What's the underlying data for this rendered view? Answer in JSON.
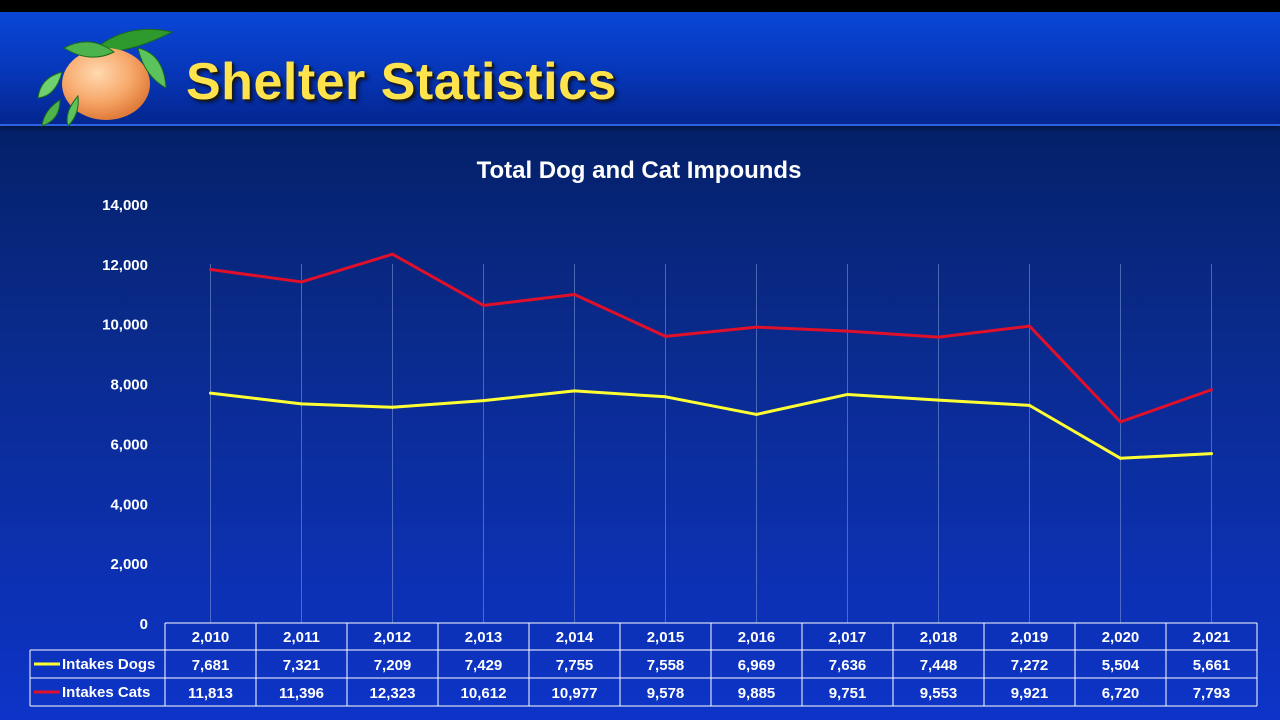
{
  "header": {
    "title": "Shelter Statistics",
    "logo_icon": "orange-fruit-icon"
  },
  "chart_data": {
    "type": "line",
    "title": "Total Dog and Cat Impounds",
    "categories": [
      "2,010",
      "2,011",
      "2,012",
      "2,013",
      "2,014",
      "2,015",
      "2,016",
      "2,017",
      "2,018",
      "2,019",
      "2,020",
      "2,021"
    ],
    "y_ticks": [
      "0",
      "2,000",
      "4,000",
      "6,000",
      "8,000",
      "10,000",
      "12,000",
      "14,000"
    ],
    "ylim": [
      0,
      14000
    ],
    "grid": "vertical",
    "legend": "data-table",
    "series": [
      {
        "name": "Intakes Dogs",
        "color": "#ffff33",
        "values": [
          7681,
          7321,
          7209,
          7429,
          7755,
          7558,
          6969,
          7636,
          7448,
          7272,
          5504,
          5661
        ],
        "labels": [
          "7,681",
          "7,321",
          "7,209",
          "7,429",
          "7,755",
          "7,558",
          "6,969",
          "7,636",
          "7,448",
          "7,272",
          "5,504",
          "5,661"
        ]
      },
      {
        "name": "Intakes Cats",
        "color": "#e0102a",
        "values": [
          11813,
          11396,
          12323,
          10612,
          10977,
          9578,
          9885,
          9751,
          9553,
          9921,
          6720,
          7793
        ],
        "labels": [
          "11,813",
          "11,396",
          "12,323",
          "10,612",
          "10,977",
          "9,578",
          "9,885",
          "9,751",
          "9,553",
          "9,921",
          "6,720",
          "7,793"
        ]
      }
    ]
  }
}
